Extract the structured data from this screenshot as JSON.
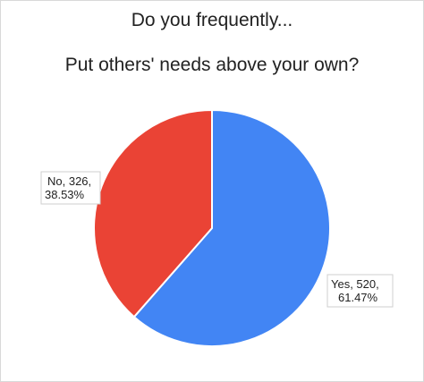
{
  "chart_data": {
    "type": "pie",
    "title_lines": [
      "Do you frequently...",
      "Put others' needs above your own?"
    ],
    "slices": [
      {
        "label": "Yes",
        "value": 520,
        "percent": 61.47,
        "color": "#4285f4",
        "data_label": [
          "Yes, 520,",
          "61.47%"
        ]
      },
      {
        "label": "No",
        "value": 326,
        "percent": 38.53,
        "color": "#ea4335",
        "data_label": [
          "No, 326,",
          "38.53%"
        ]
      }
    ],
    "start_angle_deg": 0,
    "direction": "clockwise",
    "legend": "none"
  }
}
